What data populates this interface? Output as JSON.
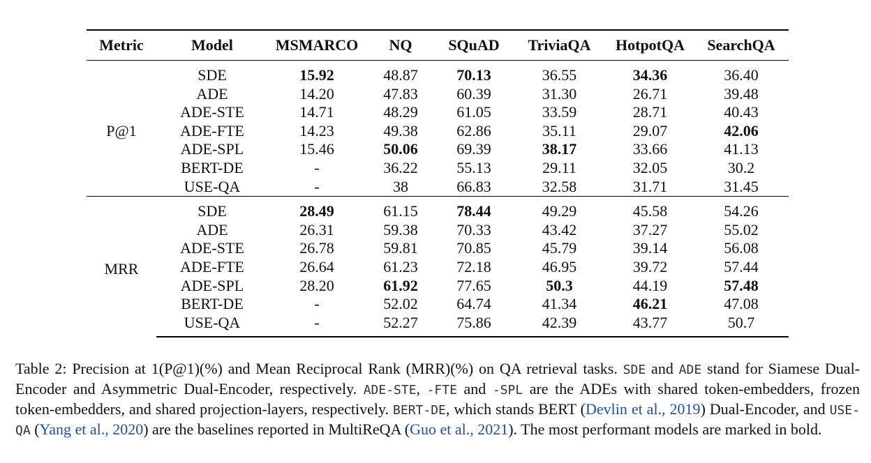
{
  "table": {
    "headers": [
      "Metric",
      "Model",
      "MSMARCO",
      "NQ",
      "SQuAD",
      "TriviaQA",
      "HotpotQA",
      "SearchQA"
    ],
    "groups": [
      {
        "metric": "P@1",
        "rows": [
          {
            "model": "SDE",
            "values": [
              "15.92",
              "48.87",
              "70.13",
              "36.55",
              "34.36",
              "36.40"
            ],
            "bold": [
              true,
              false,
              true,
              false,
              true,
              false
            ]
          },
          {
            "model": "ADE",
            "values": [
              "14.20",
              "47.83",
              "60.39",
              "31.30",
              "26.71",
              "39.48"
            ],
            "bold": [
              false,
              false,
              false,
              false,
              false,
              false
            ]
          },
          {
            "model": "ADE-STE",
            "values": [
              "14.71",
              "48.29",
              "61.05",
              "33.59",
              "28.71",
              "40.43"
            ],
            "bold": [
              false,
              false,
              false,
              false,
              false,
              false
            ]
          },
          {
            "model": "ADE-FTE",
            "values": [
              "14.23",
              "49.38",
              "62.86",
              "35.11",
              "29.07",
              "42.06"
            ],
            "bold": [
              false,
              false,
              false,
              false,
              false,
              true
            ]
          },
          {
            "model": "ADE-SPL",
            "values": [
              "15.46",
              "50.06",
              "69.39",
              "38.17",
              "33.66",
              "41.13"
            ],
            "bold": [
              false,
              true,
              false,
              true,
              false,
              false
            ]
          },
          {
            "model": "BERT-DE",
            "values": [
              "-",
              "36.22",
              "55.13",
              "29.11",
              "32.05",
              "30.2"
            ],
            "bold": [
              false,
              false,
              false,
              false,
              false,
              false
            ]
          },
          {
            "model": "USE-QA",
            "values": [
              "-",
              "38",
              "66.83",
              "32.58",
              "31.71",
              "31.45"
            ],
            "bold": [
              false,
              false,
              false,
              false,
              false,
              false
            ]
          }
        ]
      },
      {
        "metric": "MRR",
        "rows": [
          {
            "model": "SDE",
            "values": [
              "28.49",
              "61.15",
              "78.44",
              "49.29",
              "45.58",
              "54.26"
            ],
            "bold": [
              true,
              false,
              true,
              false,
              false,
              false
            ]
          },
          {
            "model": "ADE",
            "values": [
              "26.31",
              "59.38",
              "70.33",
              "43.42",
              "37.27",
              "55.02"
            ],
            "bold": [
              false,
              false,
              false,
              false,
              false,
              false
            ]
          },
          {
            "model": "ADE-STE",
            "values": [
              "26.78",
              "59.81",
              "70.85",
              "45.79",
              "39.14",
              "56.08"
            ],
            "bold": [
              false,
              false,
              false,
              false,
              false,
              false
            ]
          },
          {
            "model": "ADE-FTE",
            "values": [
              "26.64",
              "61.23",
              "72.18",
              "46.95",
              "39.72",
              "57.44"
            ],
            "bold": [
              false,
              false,
              false,
              false,
              false,
              false
            ]
          },
          {
            "model": "ADE-SPL",
            "values": [
              "28.20",
              "61.92",
              "77.65",
              "50.3",
              "44.19",
              "57.48"
            ],
            "bold": [
              false,
              true,
              false,
              true,
              false,
              true
            ]
          },
          {
            "model": "BERT-DE",
            "values": [
              "-",
              "52.02",
              "64.74",
              "41.34",
              "46.21",
              "47.08"
            ],
            "bold": [
              false,
              false,
              false,
              false,
              true,
              false
            ]
          },
          {
            "model": "USE-QA",
            "values": [
              "-",
              "52.27",
              "75.86",
              "42.39",
              "43.77",
              "50.7"
            ],
            "bold": [
              false,
              false,
              false,
              false,
              false,
              false
            ]
          }
        ]
      }
    ]
  },
  "caption": {
    "t1": "Table 2:   Precision at 1(P@1)(%) and Mean Reciprocal Rank (MRR)(%) on QA retrieval tasks. ",
    "sde": "SDE",
    "t2": " and ",
    "ade": "ADE",
    "t3": " stand for Siamese Dual-Encoder and Asymmetric Dual-Encoder, respectively. ",
    "ade_ste": "ADE-STE",
    "t4": ", ",
    "fte": "-FTE",
    "t5": " and ",
    "spl": "-SPL",
    "t6": " are the ADEs with shared token-embedders, frozen token-embedders, and shared projection-layers, respectively. ",
    "bert_de": "BERT-DE",
    "t7": ", which stands BERT (",
    "cite_devlin": "Devlin et al., 2019",
    "t8": ") Dual-Encoder, and ",
    "use_qa": "USE-QA",
    "t9": " (",
    "cite_yang": "Yang et al., 2020",
    "t10": ") are the baselines reported in MultiReQA (",
    "cite_guo": "Guo et al., 2021",
    "t11": "). The most performant models are marked in bold."
  }
}
